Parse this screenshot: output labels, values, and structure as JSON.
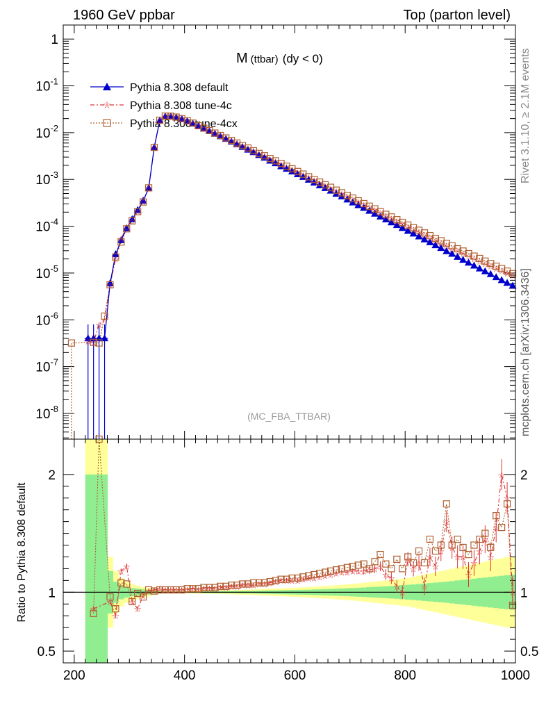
{
  "header": {
    "left_title": "1960 GeV ppbar",
    "right_title": "Top (parton level)"
  },
  "side_labels": {
    "rivet": "Rivet 3.1.10, ≥ 2.1M events",
    "mcplots": "mcplots.cern.ch [arXiv:1306.3436]"
  },
  "chart_data": {
    "type": "line",
    "title": "M(ttbar) (dy < 0)",
    "title_main": "M",
    "title_sub": "(ttbar)",
    "title_suffix": "(dy < 0)",
    "analysis_label": "(MC_FBA_TTBAR)",
    "xlabel": "",
    "ylabel": "",
    "xlim": [
      180,
      1000
    ],
    "ylim": [
      3e-09,
      2
    ],
    "log_y": true,
    "legend_position": "top-left",
    "y_tick_labels": [
      "1",
      "10^-1",
      "10^-2",
      "10^-3",
      "10^-4",
      "10^-5",
      "10^-6",
      "10^-7",
      "10^-8"
    ],
    "x_tick_labels": [
      "200",
      "400",
      "600",
      "800",
      "1000"
    ],
    "series": [
      {
        "name": "Pythia 8.308 default",
        "color": "#0000cc",
        "marker": "triangle",
        "x": [
          225,
          235,
          245,
          255,
          265,
          275,
          285,
          295,
          305,
          315,
          325,
          335,
          345,
          355,
          365,
          375,
          385,
          395,
          405,
          415,
          425,
          435,
          445,
          455,
          465,
          475,
          485,
          495,
          505,
          515,
          525,
          535,
          545,
          555,
          565,
          575,
          585,
          595,
          605,
          615,
          625,
          635,
          645,
          655,
          665,
          675,
          685,
          695,
          705,
          715,
          725,
          735,
          745,
          755,
          765,
          775,
          785,
          795,
          805,
          815,
          825,
          835,
          845,
          855,
          865,
          875,
          885,
          895,
          905,
          915,
          925,
          935,
          945,
          955,
          965,
          975,
          985,
          995
        ],
        "y": [
          4e-07,
          4e-07,
          4e-07,
          4e-07,
          6e-06,
          2.5e-05,
          5e-05,
          9e-05,
          0.00014,
          0.00022,
          0.00035,
          0.00065,
          0.0048,
          0.018,
          0.022,
          0.022,
          0.021,
          0.0195,
          0.0175,
          0.0155,
          0.0137,
          0.0121,
          0.0107,
          0.0094,
          0.0083,
          0.0073,
          0.0064,
          0.0056,
          0.0049,
          0.0043,
          0.0038,
          0.0033,
          0.0029,
          0.0025,
          0.0022,
          0.0019,
          0.00168,
          0.00147,
          0.00128,
          0.00112,
          0.00098,
          0.00085,
          0.00074,
          0.00065,
          0.00057,
          0.00049,
          0.00043,
          0.00037,
          0.00032,
          0.00028,
          0.000245,
          0.000212,
          0.000184,
          0.00016,
          0.000139,
          0.00012,
          0.000105,
          9.1e-05,
          7.9e-05,
          6.9e-05,
          6e-05,
          5.2e-05,
          4.5e-05,
          3.9e-05,
          3.4e-05,
          2.9e-05,
          2.55e-05,
          2.2e-05,
          1.9e-05,
          1.65e-05,
          1.43e-05,
          1.24e-05,
          1.08e-05,
          9.4e-06,
          8.1e-06,
          7e-06,
          6.1e-06,
          5.3e-06
        ]
      },
      {
        "name": "Pythia 8.308 tune-4c",
        "color": "#dd3333",
        "marker": "star",
        "x": [
          225,
          235,
          245,
          255,
          265,
          275,
          285,
          295,
          305,
          315,
          325,
          335,
          345,
          355,
          365,
          375,
          385,
          395,
          405,
          415,
          425,
          435,
          445,
          455,
          465,
          475,
          485,
          495,
          505,
          515,
          525,
          535,
          545,
          555,
          565,
          575,
          585,
          595,
          605,
          615,
          625,
          635,
          645,
          655,
          665,
          675,
          685,
          695,
          705,
          715,
          725,
          735,
          745,
          755,
          765,
          775,
          785,
          795,
          805,
          815,
          825,
          835,
          845,
          855,
          865,
          875,
          885,
          895,
          905,
          915,
          925,
          935,
          945,
          955,
          965,
          975,
          985,
          995
        ],
        "y": [
          3.5e-07,
          3.3e-07,
          8e-07,
          1e-06,
          5.5e-06,
          2e-05,
          5.4e-05,
          9.6e-05,
          0.000128,
          0.00021,
          0.00034,
          0.00066,
          0.0049,
          0.0185,
          0.0225,
          0.0224,
          0.0214,
          0.0198,
          0.0178,
          0.0159,
          0.014,
          0.0124,
          0.011,
          0.0097,
          0.0086,
          0.0076,
          0.0067,
          0.0059,
          0.0052,
          0.0046,
          0.004,
          0.0035,
          0.0031,
          0.0027,
          0.0024,
          0.0021,
          0.00184,
          0.00162,
          0.00141,
          0.00124,
          0.00109,
          0.00095,
          0.00083,
          0.00073,
          0.00064,
          0.00056,
          0.00049,
          0.00043,
          0.000375,
          0.00033,
          0.000288,
          0.000252,
          0.00022,
          0.000192,
          0.000168,
          0.000147,
          0.000128,
          0.000112,
          9.8e-05,
          8.5e-05,
          7.5e-05,
          6.5e-05,
          5.7e-05,
          5e-05,
          4.4e-05,
          3.8e-05,
          3.3e-05,
          2.95e-05,
          2.6e-05,
          2.3e-05,
          2e-05,
          1.78e-05,
          1.58e-05,
          1.4e-05,
          1.25e-05,
          1.12e-05,
          1e-05,
          9e-06
        ]
      },
      {
        "name": "Pythia 8.308 tune-4cx",
        "color": "#b06030",
        "marker": "square",
        "x": [
          195,
          235,
          245,
          255,
          265,
          275,
          285,
          295,
          305,
          315,
          325,
          335,
          345,
          355,
          365,
          375,
          385,
          395,
          405,
          415,
          425,
          435,
          445,
          455,
          465,
          475,
          485,
          495,
          505,
          515,
          525,
          535,
          545,
          555,
          565,
          575,
          585,
          595,
          605,
          615,
          625,
          635,
          645,
          655,
          665,
          675,
          685,
          695,
          705,
          715,
          725,
          735,
          745,
          755,
          765,
          775,
          785,
          795,
          805,
          815,
          825,
          835,
          845,
          855,
          865,
          875,
          885,
          895,
          905,
          915,
          925,
          935,
          945,
          955,
          965,
          975,
          985,
          995
        ],
        "y": [
          3.2e-07,
          3.3e-07,
          3.2e-07,
          1.2e-06,
          5.6e-06,
          2.2e-05,
          4.6e-05,
          8.8e-05,
          0.00013,
          0.000205,
          0.00033,
          0.00066,
          0.00485,
          0.0184,
          0.0226,
          0.0225,
          0.0215,
          0.0199,
          0.0179,
          0.016,
          0.0141,
          0.0125,
          0.0111,
          0.0098,
          0.0087,
          0.0077,
          0.0068,
          0.006,
          0.0053,
          0.0047,
          0.0041,
          0.0036,
          0.0032,
          0.0028,
          0.0025,
          0.0022,
          0.00192,
          0.00169,
          0.00148,
          0.0013,
          0.00114,
          0.001,
          0.00088,
          0.00077,
          0.00068,
          0.00059,
          0.00052,
          0.000455,
          0.0004,
          0.00035,
          0.000305,
          0.000268,
          0.000235,
          0.000205,
          0.00018,
          0.000158,
          0.000138,
          0.000121,
          0.000106,
          9.3e-05,
          8.2e-05,
          7.2e-05,
          6.3e-05,
          5.5e-05,
          4.9e-05,
          4.3e-05,
          3.8e-05,
          3.3e-05,
          2.95e-05,
          2.6e-05,
          2.3e-05,
          2.05e-05,
          1.8e-05,
          1.6e-05,
          1.4e-05,
          1.25e-05,
          1.1e-05,
          9.7e-06
        ]
      }
    ],
    "ratio": {
      "ylabel": "Ratio to Pythia 8.308 default",
      "ylim": [
        0.4,
        2.3
      ],
      "y_tick_labels": [
        "0.5",
        "1",
        "2"
      ],
      "reference": 1,
      "band_x": [
        225,
        235,
        245,
        255,
        265,
        275,
        285,
        295,
        305,
        315,
        325,
        335,
        345,
        355,
        365,
        375,
        385,
        395,
        405,
        415,
        425,
        435,
        445,
        455,
        465,
        475,
        485,
        495,
        505,
        515,
        525,
        535,
        545,
        555,
        565,
        575,
        585,
        595,
        605,
        615,
        625,
        635,
        645,
        655,
        665,
        675,
        685,
        695,
        705,
        715,
        725,
        735,
        745,
        755,
        765,
        775,
        785,
        795,
        805,
        815,
        825,
        835,
        845,
        855,
        865,
        875,
        885,
        895,
        905,
        915,
        925,
        935,
        945,
        955,
        965,
        975,
        985,
        995
      ],
      "green_half_width": [
        1.0,
        1.0,
        1.0,
        1.0,
        0.18,
        0.09,
        0.06,
        0.045,
        0.035,
        0.03,
        0.025,
        0.02,
        0.01,
        0.006,
        0.005,
        0.005,
        0.005,
        0.005,
        0.005,
        0.006,
        0.006,
        0.007,
        0.007,
        0.008,
        0.008,
        0.009,
        0.009,
        0.01,
        0.011,
        0.011,
        0.012,
        0.013,
        0.014,
        0.015,
        0.016,
        0.017,
        0.018,
        0.019,
        0.02,
        0.021,
        0.022,
        0.024,
        0.025,
        0.027,
        0.028,
        0.03,
        0.032,
        0.034,
        0.036,
        0.038,
        0.04,
        0.043,
        0.045,
        0.048,
        0.05,
        0.053,
        0.056,
        0.06,
        0.063,
        0.066,
        0.07,
        0.074,
        0.078,
        0.082,
        0.086,
        0.09,
        0.095,
        0.1,
        0.105,
        0.11,
        0.115,
        0.12,
        0.125,
        0.13,
        0.135,
        0.14,
        0.145,
        0.15
      ],
      "yellow_half_width": [
        1.3,
        1.3,
        1.3,
        1.3,
        0.3,
        0.18,
        0.12,
        0.09,
        0.07,
        0.055,
        0.045,
        0.035,
        0.02,
        0.012,
        0.01,
        0.01,
        0.01,
        0.01,
        0.01,
        0.011,
        0.012,
        0.013,
        0.014,
        0.015,
        0.016,
        0.017,
        0.018,
        0.02,
        0.021,
        0.022,
        0.024,
        0.026,
        0.028,
        0.03,
        0.032,
        0.034,
        0.036,
        0.038,
        0.04,
        0.042,
        0.045,
        0.048,
        0.05,
        0.053,
        0.056,
        0.06,
        0.063,
        0.067,
        0.071,
        0.075,
        0.08,
        0.085,
        0.09,
        0.095,
        0.1,
        0.105,
        0.11,
        0.115,
        0.12,
        0.13,
        0.14,
        0.15,
        0.16,
        0.17,
        0.18,
        0.19,
        0.2,
        0.21,
        0.22,
        0.23,
        0.24,
        0.25,
        0.26,
        0.27,
        0.28,
        0.29,
        0.3,
        0.3
      ],
      "series": [
        {
          "name": "Pythia 8.308 tune-4c",
          "x": [
            235,
            265,
            275,
            285,
            295,
            305,
            315,
            325,
            335,
            345,
            355,
            365,
            375,
            385,
            395,
            405,
            415,
            425,
            435,
            445,
            455,
            465,
            475,
            485,
            495,
            505,
            515,
            525,
            535,
            545,
            555,
            565,
            575,
            585,
            595,
            605,
            615,
            625,
            635,
            645,
            655,
            665,
            675,
            685,
            695,
            705,
            715,
            725,
            735,
            745,
            755,
            765,
            775,
            785,
            795,
            805,
            815,
            825,
            835,
            845,
            855,
            865,
            875,
            885,
            895,
            905,
            915,
            925,
            935,
            945,
            955,
            965,
            975,
            985,
            995
          ],
          "y": [
            0.86,
            0.92,
            0.8,
            1.18,
            1.22,
            0.92,
            0.86,
            0.97,
            1.01,
            1.02,
            1.03,
            1.02,
            1.02,
            1.02,
            1.02,
            1.02,
            1.03,
            1.02,
            1.03,
            1.03,
            1.03,
            1.04,
            1.04,
            1.05,
            1.05,
            1.06,
            1.06,
            1.06,
            1.07,
            1.07,
            1.08,
            1.09,
            1.1,
            1.1,
            1.1,
            1.1,
            1.11,
            1.12,
            1.12,
            1.13,
            1.14,
            1.15,
            1.16,
            1.17,
            1.17,
            1.18,
            1.18,
            1.18,
            1.19,
            1.2,
            1.22,
            1.15,
            1.12,
            1.05,
            1.0,
            1.28,
            1.2,
            1.25,
            1.05,
            1.3,
            1.22,
            1.35,
            1.6,
            1.38,
            1.3,
            1.3,
            1.15,
            1.25,
            1.35,
            1.45,
            1.3,
            1.55,
            2.0,
            1.8,
            1.0
          ]
        },
        {
          "name": "Pythia 8.308 tune-4cx",
          "x": [
            235,
            245,
            265,
            275,
            285,
            295,
            305,
            315,
            325,
            335,
            345,
            355,
            365,
            375,
            385,
            395,
            405,
            415,
            425,
            435,
            445,
            455,
            465,
            475,
            485,
            495,
            505,
            515,
            525,
            535,
            545,
            555,
            565,
            575,
            585,
            595,
            605,
            615,
            625,
            635,
            645,
            655,
            665,
            675,
            685,
            695,
            705,
            715,
            725,
            735,
            745,
            755,
            765,
            775,
            785,
            795,
            805,
            815,
            825,
            835,
            845,
            855,
            865,
            875,
            885,
            895,
            905,
            915,
            925,
            935,
            945,
            955,
            965,
            975,
            985,
            995
          ],
          "y": [
            0.82,
            2.3,
            0.96,
            0.86,
            1.08,
            1.07,
            0.92,
            0.99,
            0.96,
            1.02,
            1.01,
            1.02,
            1.02,
            1.02,
            1.02,
            1.02,
            1.03,
            1.03,
            1.03,
            1.04,
            1.04,
            1.04,
            1.05,
            1.05,
            1.06,
            1.06,
            1.07,
            1.07,
            1.08,
            1.08,
            1.08,
            1.09,
            1.1,
            1.11,
            1.11,
            1.12,
            1.12,
            1.13,
            1.14,
            1.15,
            1.16,
            1.17,
            1.18,
            1.19,
            1.2,
            1.21,
            1.22,
            1.23,
            1.24,
            1.2,
            1.26,
            1.32,
            1.24,
            1.2,
            1.28,
            1.2,
            1.3,
            1.25,
            1.35,
            1.25,
            1.45,
            1.35,
            1.4,
            1.75,
            1.4,
            1.45,
            1.38,
            1.32,
            1.4,
            1.45,
            1.5,
            1.38,
            1.65,
            1.55,
            1.75,
            0.89
          ]
        }
      ]
    }
  }
}
